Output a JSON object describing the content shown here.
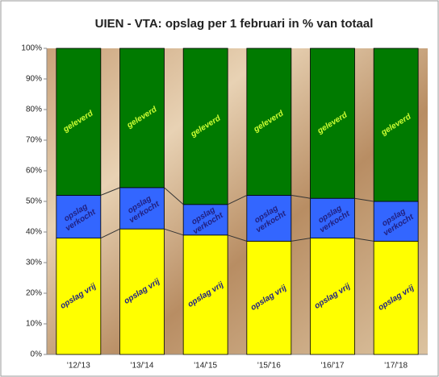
{
  "chart_data": {
    "type": "stacked-bar",
    "title": "UIEN - VTA: opslag per 1 februari  in % van totaal",
    "categories": [
      "'12/'13",
      "'13/'14",
      "'14/'15",
      "'15/'16",
      "'16/'17",
      "'17/'18"
    ],
    "series": [
      {
        "name": "opslag vrij",
        "color": "#ffff00",
        "text_color": "#202080",
        "values": [
          38,
          41,
          39,
          37,
          38,
          37
        ]
      },
      {
        "name": "opslag verkocht",
        "color": "#3366ff",
        "text_color": "#202080",
        "values": [
          14,
          13.5,
          10,
          15,
          13,
          13
        ]
      },
      {
        "name": "geleverd",
        "color": "#007a00",
        "text_color": "#ccff33",
        "values": [
          48,
          45.5,
          51,
          48,
          49,
          50
        ]
      }
    ],
    "ylim": [
      0,
      100
    ],
    "yticks": [
      {
        "value": 0,
        "label": "0%"
      },
      {
        "value": 10,
        "label": "10%"
      },
      {
        "value": 20,
        "label": "20%"
      },
      {
        "value": 30,
        "label": "30%"
      },
      {
        "value": 40,
        "label": "40%"
      },
      {
        "value": 50,
        "label": "50%"
      },
      {
        "value": 60,
        "label": "60%"
      },
      {
        "value": 70,
        "label": "70%"
      },
      {
        "value": 80,
        "label": "80%"
      },
      {
        "value": 90,
        "label": "90%"
      },
      {
        "value": 100,
        "label": "100%"
      }
    ]
  }
}
